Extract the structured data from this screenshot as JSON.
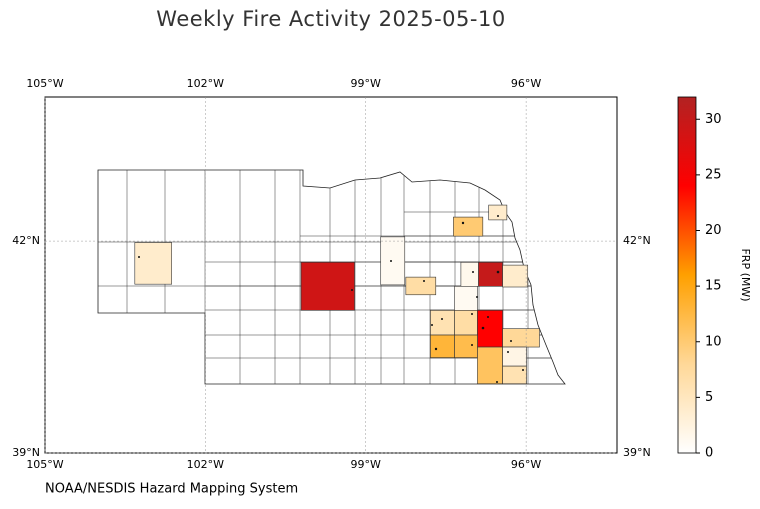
{
  "chart_data": {
    "type": "choropleth",
    "title": "Weekly Fire Activity 2025-05-10",
    "credit": "NOAA/NESDIS Hazard Mapping System",
    "xlim": [
      -105,
      -94.3
    ],
    "ylim": [
      39,
      44.04
    ],
    "xticks": [
      {
        "value": -105,
        "label": "105°W"
      },
      {
        "value": -102,
        "label": "102°W"
      },
      {
        "value": -99,
        "label": "99°W"
      },
      {
        "value": -96,
        "label": "96°W"
      }
    ],
    "yticks": [
      {
        "value": 39,
        "label": "39°N"
      },
      {
        "value": 42,
        "label": "42°N"
      }
    ],
    "grid": true,
    "colorbar": {
      "label": "FRP (MW)",
      "lim": [
        0,
        32
      ],
      "ticks": [
        0,
        5,
        10,
        15,
        20,
        25,
        30
      ],
      "colormap": [
        "#ffffff",
        "#ffd898",
        "#ffa000",
        "#ff0000",
        "#b22222"
      ]
    },
    "regions": [
      {
        "lon": [
          -103.32,
          -102.63
        ],
        "lat": [
          41.39,
          41.98
        ],
        "frp": 4
      },
      {
        "lon": [
          -100.21,
          -99.21
        ],
        "lat": [
          41.02,
          41.7
        ],
        "frp": 29
      },
      {
        "lon": [
          -98.72,
          -98.27
        ],
        "lat": [
          41.38,
          42.06
        ],
        "frp": 1
      },
      {
        "lon": [
          -98.25,
          -97.69
        ],
        "lat": [
          41.24,
          41.49
        ],
        "frp": 7
      },
      {
        "lon": [
          -97.36,
          -96.81
        ],
        "lat": [
          42.07,
          42.34
        ],
        "frp": 10
      },
      {
        "lon": [
          -96.7,
          -96.36
        ],
        "lat": [
          42.3,
          42.51
        ],
        "frp": 4
      },
      {
        "lon": [
          -97.22,
          -96.89
        ],
        "lat": [
          41.36,
          41.7
        ],
        "frp": 1.5
      },
      {
        "lon": [
          -96.89,
          -96.44
        ],
        "lat": [
          41.36,
          41.7
        ],
        "frp": 30
      },
      {
        "lon": [
          -96.44,
          -95.97
        ],
        "lat": [
          41.35,
          41.66
        ],
        "frp": 4
      },
      {
        "lon": [
          -97.34,
          -96.91
        ],
        "lat": [
          41.02,
          41.36
        ],
        "frp": 1
      },
      {
        "lon": [
          -97.79,
          -97.34
        ],
        "lat": [
          40.67,
          41.02
        ],
        "frp": 6
      },
      {
        "lon": [
          -97.34,
          -96.91
        ],
        "lat": [
          40.67,
          41.02
        ],
        "frp": 7
      },
      {
        "lon": [
          -96.91,
          -96.44
        ],
        "lat": [
          40.5,
          41.02
        ],
        "frp": 24
      },
      {
        "lon": [
          -97.79,
          -97.34
        ],
        "lat": [
          40.35,
          40.67
        ],
        "frp": 13
      },
      {
        "lon": [
          -97.34,
          -96.91
        ],
        "lat": [
          40.35,
          40.67
        ],
        "frp": 12
      },
      {
        "lon": [
          -96.44,
          -95.75
        ],
        "lat": [
          40.5,
          40.76
        ],
        "frp": 8
      },
      {
        "lon": [
          -96.91,
          -96.44
        ],
        "lat": [
          39.98,
          40.5
        ],
        "frp": 11
      },
      {
        "lon": [
          -96.44,
          -95.99
        ],
        "lat": [
          40.23,
          40.5
        ],
        "frp": 2
      },
      {
        "lon": [
          -96.44,
          -95.99
        ],
        "lat": [
          39.98,
          40.23
        ],
        "frp": 6
      }
    ]
  }
}
